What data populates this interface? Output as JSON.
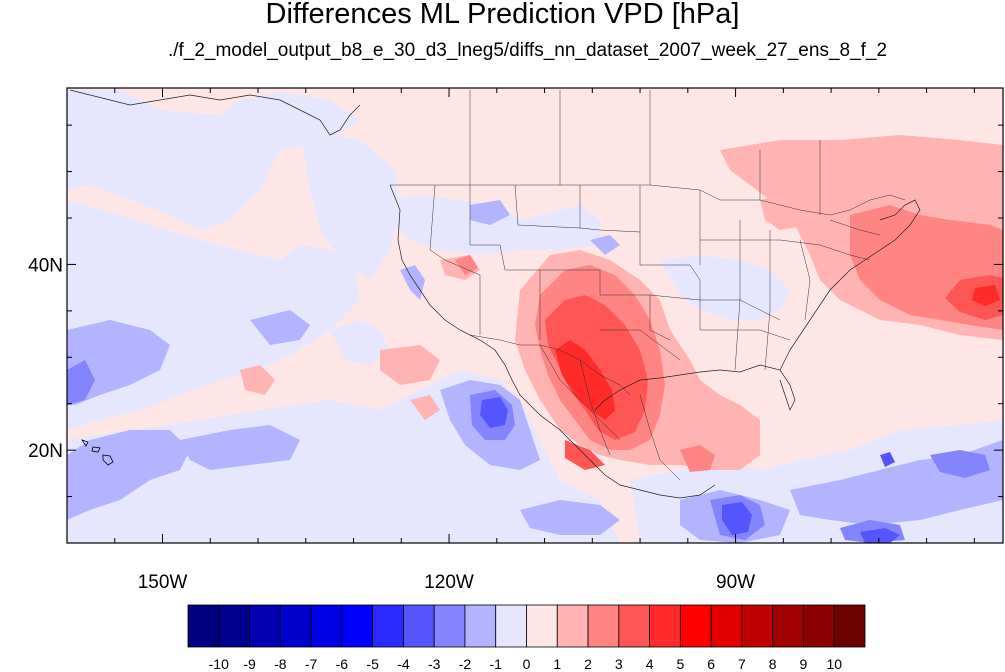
{
  "figure": {
    "title": "Differences ML Prediction VPD [hPa]",
    "subtitle": "./f_2_model_output_b8_e_30_d3_lneg5/diffs_nn_dataset_2007_week_27_ens_8_f_2"
  },
  "map": {
    "projection": "cylindrical-equidistant",
    "lon_range": [
      -160,
      -62
    ],
    "lat_range": [
      10,
      59
    ],
    "lon_ticks": [
      {
        "lon": -150,
        "label": "150W"
      },
      {
        "lon": -120,
        "label": "120W"
      },
      {
        "lon": -90,
        "label": "90W"
      }
    ],
    "lat_ticks": [
      {
        "lat": 40,
        "label": "40N"
      },
      {
        "lat": 20,
        "label": "20N"
      }
    ],
    "field_summary": {
      "positive_regions": [
        "Mexico / Texas / Southwest US",
        "Eastern Canada",
        "North Atlantic",
        "Central America"
      ],
      "negative_regions": [
        "Central Pacific",
        "Eastern Pacific off Baja",
        "Caribbean / Central America coast"
      ]
    }
  },
  "colorbar": {
    "labels": [
      "-10",
      "-9",
      "-8",
      "-7",
      "-6",
      "-5",
      "-4",
      "-3",
      "-2",
      "-1",
      "0",
      "1",
      "2",
      "3",
      "4",
      "5",
      "6",
      "7",
      "8",
      "9",
      "10"
    ],
    "colors": [
      "#000080",
      "#00008f",
      "#0000b0",
      "#0000cd",
      "#0000e6",
      "#0000ff",
      "#2a2aff",
      "#5555ff",
      "#8484ff",
      "#b3b3ff",
      "#e6e6ff",
      "#ffe6e6",
      "#ffb3b3",
      "#ff8484",
      "#ff5555",
      "#ff2a2a",
      "#ff0000",
      "#e00000",
      "#c00000",
      "#a00000",
      "#8b0000",
      "#6e0000"
    ]
  }
}
